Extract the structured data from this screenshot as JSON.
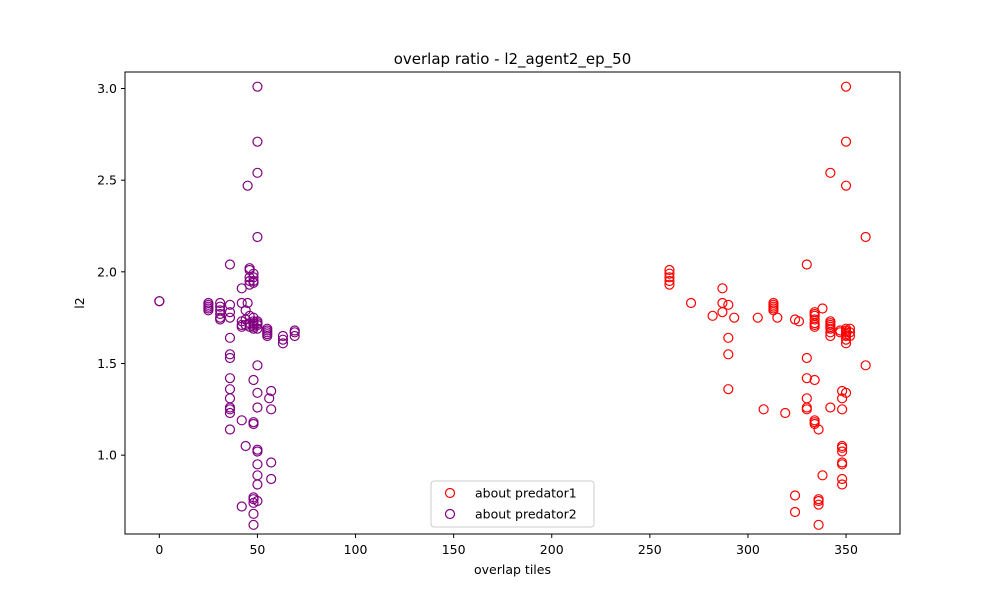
{
  "chart_data": {
    "type": "scatter",
    "title": "overlap ratio - l2_agent2_ep_50",
    "xlabel": "overlap tiles",
    "ylabel": "l2",
    "xlim": [
      -17.5,
      377.5
    ],
    "ylim": [
      0.57,
      3.09
    ],
    "xticks": [
      0,
      50,
      100,
      150,
      200,
      250,
      300,
      350
    ],
    "yticks": [
      1.0,
      1.5,
      2.0,
      2.5,
      3.0
    ],
    "grid": false,
    "legend_position": "lower-center",
    "marker": "open-circle",
    "series": [
      {
        "name": "about predator1",
        "color": "#ff0000",
        "points": [
          [
            260,
            2.01
          ],
          [
            260,
            1.99
          ],
          [
            260,
            1.97
          ],
          [
            260,
            1.95
          ],
          [
            260,
            1.93
          ],
          [
            271,
            1.83
          ],
          [
            282,
            1.76
          ],
          [
            287,
            1.91
          ],
          [
            287,
            1.83
          ],
          [
            287,
            1.78
          ],
          [
            290,
            1.82
          ],
          [
            290,
            1.64
          ],
          [
            290,
            1.55
          ],
          [
            290,
            1.36
          ],
          [
            293,
            1.75
          ],
          [
            305,
            1.75
          ],
          [
            308,
            1.25
          ],
          [
            313,
            1.83
          ],
          [
            313,
            1.82
          ],
          [
            313,
            1.81
          ],
          [
            313,
            1.8
          ],
          [
            313,
            1.79
          ],
          [
            315,
            1.75
          ],
          [
            319,
            1.23
          ],
          [
            324,
            1.74
          ],
          [
            324,
            0.78
          ],
          [
            324,
            0.69
          ],
          [
            326,
            1.73
          ],
          [
            330,
            2.04
          ],
          [
            330,
            1.53
          ],
          [
            330,
            1.42
          ],
          [
            330,
            1.31
          ],
          [
            330,
            1.26
          ],
          [
            330,
            1.25
          ],
          [
            334,
            1.78
          ],
          [
            334,
            1.77
          ],
          [
            334,
            1.76
          ],
          [
            334,
            1.74
          ],
          [
            334,
            1.72
          ],
          [
            334,
            1.71
          ],
          [
            334,
            1.7
          ],
          [
            334,
            1.41
          ],
          [
            334,
            1.19
          ],
          [
            334,
            1.18
          ],
          [
            334,
            1.17
          ],
          [
            336,
            1.14
          ],
          [
            336,
            0.76
          ],
          [
            336,
            0.75
          ],
          [
            336,
            0.73
          ],
          [
            336,
            0.62
          ],
          [
            338,
            1.8
          ],
          [
            338,
            0.89
          ],
          [
            342,
            2.54
          ],
          [
            342,
            1.73
          ],
          [
            342,
            1.72
          ],
          [
            342,
            1.71
          ],
          [
            342,
            1.7
          ],
          [
            342,
            1.69
          ],
          [
            342,
            1.67
          ],
          [
            342,
            1.65
          ],
          [
            342,
            1.26
          ],
          [
            347,
            1.68
          ],
          [
            347,
            1.67
          ],
          [
            348,
            1.35
          ],
          [
            348,
            1.31
          ],
          [
            348,
            1.25
          ],
          [
            348,
            1.05
          ],
          [
            348,
            1.04
          ],
          [
            348,
            1.02
          ],
          [
            348,
            0.96
          ],
          [
            348,
            0.95
          ],
          [
            348,
            0.87
          ],
          [
            348,
            0.84
          ],
          [
            350,
            3.01
          ],
          [
            350,
            2.71
          ],
          [
            350,
            2.47
          ],
          [
            350,
            1.69
          ],
          [
            350,
            1.68
          ],
          [
            350,
            1.67
          ],
          [
            350,
            1.66
          ],
          [
            350,
            1.65
          ],
          [
            350,
            1.63
          ],
          [
            350,
            1.61
          ],
          [
            350,
            1.34
          ],
          [
            352,
            1.69
          ],
          [
            352,
            1.67
          ],
          [
            352,
            1.65
          ],
          [
            360,
            2.19
          ],
          [
            360,
            1.49
          ]
        ]
      },
      {
        "name": "about predator2",
        "color": "#800080",
        "points": [
          [
            0,
            1.84
          ],
          [
            0,
            1.84
          ],
          [
            25,
            1.83
          ],
          [
            25,
            1.82
          ],
          [
            25,
            1.81
          ],
          [
            25,
            1.8
          ],
          [
            25,
            1.79
          ],
          [
            31,
            1.83
          ],
          [
            31,
            1.81
          ],
          [
            31,
            1.79
          ],
          [
            31,
            1.77
          ],
          [
            31,
            1.75
          ],
          [
            31,
            1.74
          ],
          [
            36,
            2.04
          ],
          [
            36,
            1.82
          ],
          [
            36,
            1.78
          ],
          [
            36,
            1.75
          ],
          [
            36,
            1.64
          ],
          [
            36,
            1.55
          ],
          [
            36,
            1.53
          ],
          [
            36,
            1.42
          ],
          [
            36,
            1.36
          ],
          [
            36,
            1.31
          ],
          [
            36,
            1.26
          ],
          [
            36,
            1.25
          ],
          [
            36,
            1.23
          ],
          [
            36,
            1.14
          ],
          [
            42,
            1.91
          ],
          [
            42,
            1.83
          ],
          [
            42,
            1.73
          ],
          [
            42,
            1.71
          ],
          [
            42,
            1.7
          ],
          [
            42,
            1.19
          ],
          [
            42,
            0.72
          ],
          [
            44,
            1.79
          ],
          [
            44,
            1.74
          ],
          [
            44,
            1.71
          ],
          [
            44,
            1.05
          ],
          [
            45,
            2.47
          ],
          [
            45,
            1.83
          ],
          [
            46,
            2.02
          ],
          [
            46,
            2.01
          ],
          [
            46,
            1.97
          ],
          [
            46,
            1.95
          ],
          [
            46,
            1.93
          ],
          [
            46,
            1.76
          ],
          [
            46,
            1.72
          ],
          [
            46,
            1.7
          ],
          [
            48,
            1.99
          ],
          [
            48,
            1.97
          ],
          [
            48,
            1.95
          ],
          [
            48,
            1.94
          ],
          [
            48,
            1.75
          ],
          [
            48,
            1.73
          ],
          [
            48,
            1.72
          ],
          [
            48,
            1.71
          ],
          [
            48,
            1.7
          ],
          [
            48,
            1.69
          ],
          [
            48,
            1.41
          ],
          [
            48,
            1.18
          ],
          [
            48,
            1.17
          ],
          [
            48,
            0.77
          ],
          [
            48,
            0.76
          ],
          [
            48,
            0.74
          ],
          [
            48,
            0.68
          ],
          [
            48,
            0.62
          ],
          [
            50,
            3.01
          ],
          [
            50,
            2.71
          ],
          [
            50,
            2.54
          ],
          [
            50,
            2.19
          ],
          [
            50,
            1.73
          ],
          [
            50,
            1.72
          ],
          [
            50,
            1.71
          ],
          [
            50,
            1.69
          ],
          [
            50,
            1.49
          ],
          [
            50,
            1.34
          ],
          [
            50,
            1.26
          ],
          [
            50,
            1.03
          ],
          [
            50,
            1.02
          ],
          [
            50,
            0.95
          ],
          [
            50,
            0.89
          ],
          [
            50,
            0.84
          ],
          [
            50,
            0.75
          ],
          [
            55,
            1.69
          ],
          [
            55,
            1.68
          ],
          [
            55,
            1.67
          ],
          [
            55,
            1.66
          ],
          [
            55,
            1.65
          ],
          [
            56,
            1.31
          ],
          [
            57,
            1.35
          ],
          [
            57,
            1.25
          ],
          [
            57,
            0.96
          ],
          [
            57,
            0.87
          ],
          [
            63,
            1.65
          ],
          [
            63,
            1.63
          ],
          [
            63,
            1.61
          ],
          [
            69,
            1.68
          ],
          [
            69,
            1.67
          ],
          [
            69,
            1.65
          ]
        ]
      }
    ]
  }
}
